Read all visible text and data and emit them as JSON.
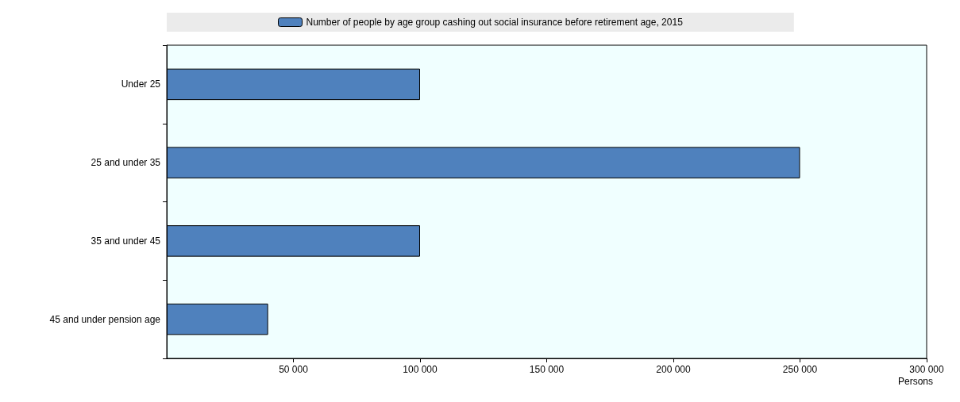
{
  "chart_data": {
    "type": "bar",
    "orientation": "horizontal",
    "categories": [
      "Under 25",
      "25 and under 35",
      "35 and under 45",
      "45 and under pension age"
    ],
    "series": [
      {
        "name": "Number of people by age group cashing out social insurance before retirement age, 2015",
        "color": "#4f81bd",
        "values": [
          100000,
          250000,
          100000,
          40000
        ]
      }
    ],
    "xlim": [
      0,
      300000
    ],
    "xticks": [
      {
        "value": 50000,
        "label": "50 000"
      },
      {
        "value": 100000,
        "label": "100 000"
      },
      {
        "value": 150000,
        "label": "150 000"
      },
      {
        "value": 200000,
        "label": "200 000"
      },
      {
        "value": 250000,
        "label": "250 000"
      },
      {
        "value": 300000,
        "label": "300 000"
      }
    ],
    "xlabel": "Persons",
    "legend": "top",
    "grid": false
  }
}
